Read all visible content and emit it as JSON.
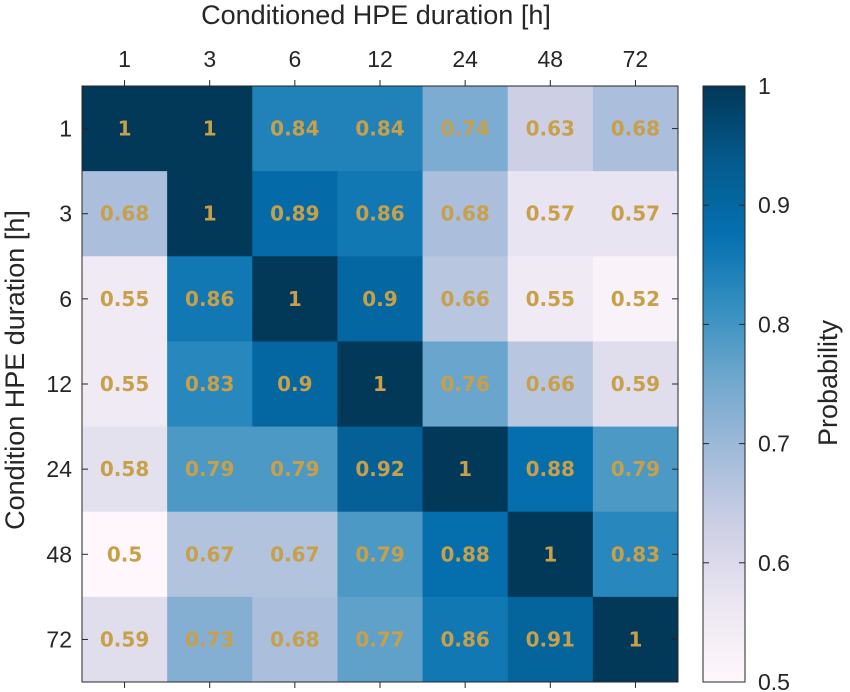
{
  "chart_data": {
    "type": "heatmap",
    "xlabel": "Conditioned HPE duration [h]",
    "ylabel": "Condition HPE duration [h]",
    "x_categories": [
      "1",
      "3",
      "6",
      "12",
      "24",
      "48",
      "72"
    ],
    "y_categories": [
      "1",
      "3",
      "6",
      "12",
      "24",
      "48",
      "72"
    ],
    "values": [
      [
        1,
        1,
        0.84,
        0.84,
        0.74,
        0.63,
        0.68
      ],
      [
        0.68,
        1,
        0.89,
        0.86,
        0.68,
        0.57,
        0.57
      ],
      [
        0.55,
        0.86,
        1,
        0.9,
        0.66,
        0.55,
        0.52
      ],
      [
        0.55,
        0.83,
        0.9,
        1,
        0.76,
        0.66,
        0.59
      ],
      [
        0.58,
        0.79,
        0.79,
        0.92,
        1,
        0.88,
        0.79
      ],
      [
        0.5,
        0.67,
        0.67,
        0.79,
        0.88,
        1,
        0.83
      ],
      [
        0.59,
        0.73,
        0.68,
        0.77,
        0.86,
        0.91,
        1
      ]
    ],
    "value_labels": [
      [
        "1",
        "1",
        "0.84",
        "0.84",
        "0.74",
        "0.63",
        "0.68"
      ],
      [
        "0.68",
        "1",
        "0.89",
        "0.86",
        "0.68",
        "0.57",
        "0.57"
      ],
      [
        "0.55",
        "0.86",
        "1",
        "0.9",
        "0.66",
        "0.55",
        "0.52"
      ],
      [
        "0.55",
        "0.83",
        "0.9",
        "1",
        "0.76",
        "0.66",
        "0.59"
      ],
      [
        "0.58",
        "0.79",
        "0.79",
        "0.92",
        "1",
        "0.88",
        "0.79"
      ],
      [
        "0.5",
        "0.67",
        "0.67",
        "0.79",
        "0.88",
        "1",
        "0.83"
      ],
      [
        "0.59",
        "0.73",
        "0.68",
        "0.77",
        "0.86",
        "0.91",
        "1"
      ]
    ],
    "colorbar": {
      "label": "Probability",
      "range": [
        0.5,
        1
      ],
      "ticks": [
        0.5,
        0.6,
        0.7,
        0.8,
        0.9,
        1
      ],
      "tick_labels": [
        "0.5",
        "0.6",
        "0.7",
        "0.8",
        "0.9",
        "1"
      ]
    },
    "colormap": [
      "#fff7fb",
      "#ece7f2",
      "#d0d1e6",
      "#a6bddb",
      "#74a9cf",
      "#3690c0",
      "#0570b0",
      "#045a8d",
      "#023858"
    ],
    "label_color": "#c8a04a",
    "axis_color": "#262626"
  }
}
